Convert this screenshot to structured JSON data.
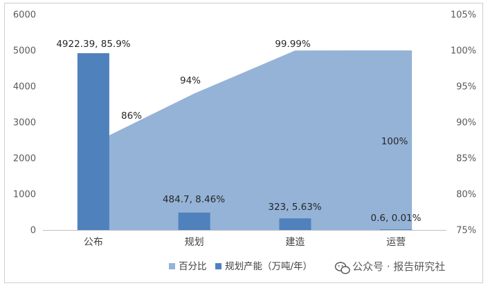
{
  "chart_data": {
    "type": "bar+area",
    "categories": [
      "公布",
      "规划",
      "建造",
      "运营"
    ],
    "series": [
      {
        "name": "百分比",
        "type": "area",
        "axis": "right",
        "values": [
          86,
          94,
          99.99,
          100
        ],
        "labels": [
          "86%",
          "94%",
          "99.99%",
          "100%"
        ],
        "color": "#95b3d7"
      },
      {
        "name": "规划产能（万吨/年）",
        "type": "bar",
        "axis": "left",
        "values": [
          4922.39,
          484.7,
          323,
          0.6
        ],
        "labels": [
          "4922.39, 85.9%",
          "484.7, 8.46%",
          "323, 5.63%",
          "0.6, 0.01%"
        ],
        "color": "#4f81bd"
      }
    ],
    "y_left": {
      "min": 0,
      "max": 6000,
      "ticks": [
        "0",
        "1000",
        "2000",
        "3000",
        "4000",
        "5000",
        "6000"
      ]
    },
    "y_right": {
      "min": 75,
      "max": 105,
      "ticks": [
        "75%",
        "80%",
        "85%",
        "90%",
        "95%",
        "100%",
        "105%"
      ]
    },
    "grid": false,
    "legend": "bottom-center"
  },
  "watermark": {
    "text": "公众号 · 报告研究社",
    "icon": "wechat-icon"
  }
}
